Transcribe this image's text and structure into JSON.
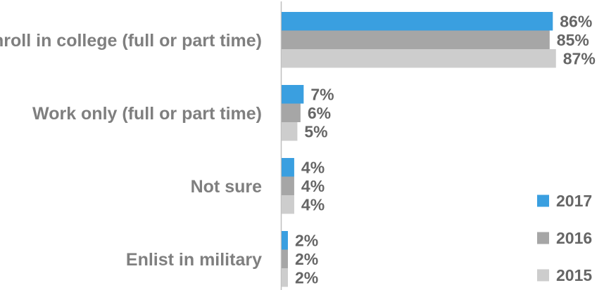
{
  "chart_data": {
    "type": "bar",
    "orientation": "horizontal",
    "categories": [
      "Enroll in college (full or part time)",
      "Work only (full or part time)",
      "Not sure",
      "Enlist in military"
    ],
    "series": [
      {
        "name": "2017",
        "color": "#3a9fe0",
        "values": [
          86,
          7,
          4,
          2
        ],
        "labels": [
          "86%",
          "7%",
          "4%",
          "2%"
        ]
      },
      {
        "name": "2016",
        "color": "#a6a6a6",
        "values": [
          85,
          6,
          4,
          2
        ],
        "labels": [
          "85%",
          "6%",
          "4%",
          "2%"
        ]
      },
      {
        "name": "2015",
        "color": "#cdcdcd",
        "values": [
          87,
          5,
          4,
          2
        ],
        "labels": [
          "87%",
          "5%",
          "4%",
          "2%"
        ]
      }
    ],
    "xlim": [
      0,
      100
    ],
    "grid": false,
    "legend": "bottom-right",
    "axis_line_color": "#bfbfbf",
    "label_color": "#7f7f7f"
  }
}
